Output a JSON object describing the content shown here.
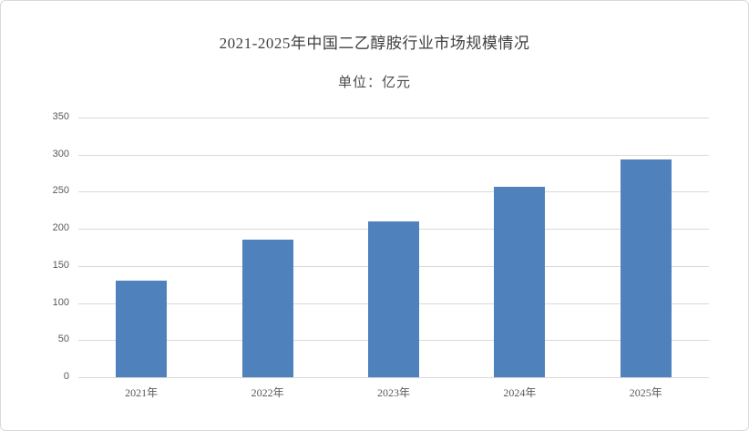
{
  "window": {
    "background_color": "#ffffff",
    "border_color": "#d9d9d9"
  },
  "header": {
    "title": "2021-2025年中国二乙醇胺行业市场规模情况",
    "subtitle": "单位：亿元"
  },
  "chart_data": {
    "type": "bar",
    "title": "2021-2025年中国二乙醇胺行业市场规模情况",
    "unit_label": "单位：亿元",
    "categories": [
      "2021年",
      "2022年",
      "2023年",
      "2024年",
      "2025年"
    ],
    "values": [
      130,
      186,
      210,
      257,
      293
    ],
    "xlabel": "",
    "ylabel": "",
    "ylim": [
      0,
      350
    ],
    "yticks": [
      0,
      50,
      100,
      150,
      200,
      250,
      300,
      350
    ],
    "grid": true,
    "legend_position": "none",
    "bar_color": "#4F81BD",
    "gridline_color": "#D9D9D9",
    "axis_text_color": "#595959",
    "title_color": "#404040"
  }
}
